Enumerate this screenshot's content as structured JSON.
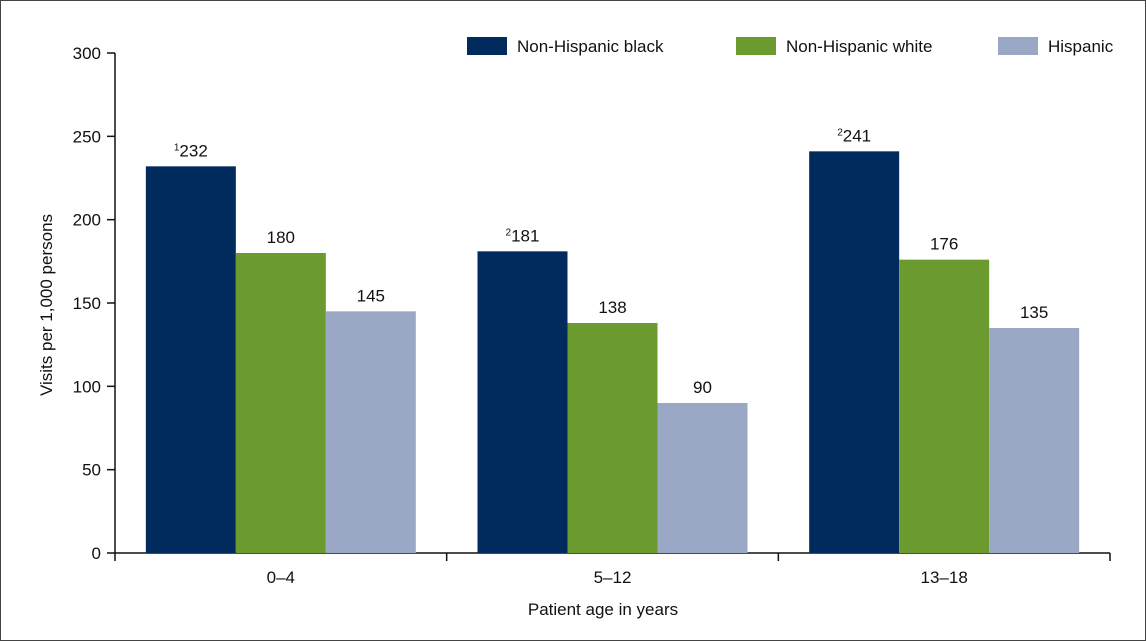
{
  "chart_data": {
    "type": "bar",
    "xlabel": "Patient age in years",
    "ylabel": "Visits per 1,000 persons",
    "ylim": [
      0,
      300
    ],
    "yticks": [
      0,
      50,
      100,
      150,
      200,
      250,
      300
    ],
    "categories": [
      "0–4",
      "5–12",
      "13–18"
    ],
    "series": [
      {
        "name": "Non-Hispanic black",
        "color": "#002b5c",
        "values": [
          232,
          181,
          241
        ],
        "footnotes": [
          "1",
          "2",
          "2"
        ]
      },
      {
        "name": "Non-Hispanic white",
        "color": "#6b9a2f",
        "values": [
          180,
          138,
          176
        ],
        "footnotes": [
          "",
          "",
          ""
        ]
      },
      {
        "name": "Hispanic",
        "color": "#9aa8c6",
        "values": [
          145,
          90,
          135
        ],
        "footnotes": [
          "",
          "",
          ""
        ]
      }
    ],
    "legend_position": "top-right",
    "grid": false
  }
}
